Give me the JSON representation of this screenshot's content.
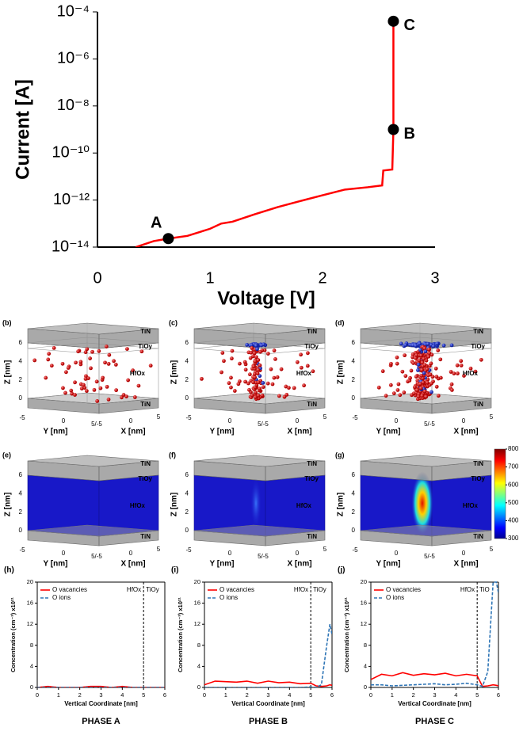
{
  "chart_data": [
    {
      "type": "line",
      "ylog": true,
      "xlabel": "Voltage [V]",
      "ylabel": "Current [A]",
      "color": "#ff0000",
      "x": [
        0.34,
        0.5,
        0.63,
        0.8,
        1.0,
        1.1,
        1.2,
        1.4,
        1.6,
        1.8,
        2.0,
        2.2,
        2.4,
        2.53,
        2.54,
        2.62,
        2.63,
        2.63
      ],
      "values": [
        1e-14,
        1.8e-14,
        2.3e-14,
        3e-14,
        6e-14,
        1e-13,
        1.2e-13,
        2.5e-13,
        5e-13,
        9e-13,
        1.6e-12,
        2.8e-12,
        3.5e-12,
        4.2e-12,
        1.8e-11,
        2e-11,
        1e-09,
        4e-05
      ],
      "xlim": [
        0,
        3
      ],
      "xticks": [
        0,
        1,
        2,
        3
      ],
      "ylim": [
        1e-14,
        0.0001
      ],
      "yticks": [
        {
          "value": 1e-14,
          "label": "10⁻¹⁴"
        },
        {
          "value": 1e-12,
          "label": "10⁻¹²"
        },
        {
          "value": 1e-10,
          "label": "10⁻¹⁰"
        },
        {
          "value": 1e-08,
          "label": "10⁻⁸"
        },
        {
          "value": 1e-06,
          "label": "10⁻⁶"
        },
        {
          "value": 0.0001,
          "label": "10⁻⁴"
        }
      ],
      "points": [
        {
          "label": "A",
          "x": 0.63,
          "y": 2.3e-14
        },
        {
          "label": "B",
          "x": 2.63,
          "y": 1e-09
        },
        {
          "label": "C",
          "x": 2.63,
          "y": 4e-05
        }
      ]
    },
    {
      "type": "line",
      "panel": "(h)",
      "caption": "PHASE A",
      "xlabel": "Vertical Coordinate [nm]",
      "ylabel": "Concentration (cm⁻³) x10²¹",
      "x": [
        0,
        0.5,
        1,
        1.5,
        2,
        2.5,
        3,
        3.5,
        4,
        4.5,
        5,
        5.25,
        5.5,
        5.75,
        5.9,
        6
      ],
      "series": [
        {
          "name": "O vacancies",
          "color": "#ff0000",
          "style": "solid",
          "values": [
            0,
            0.2,
            0,
            0,
            0,
            0.2,
            0.2,
            0,
            0.2,
            0,
            0,
            0,
            0,
            0,
            0,
            0
          ]
        },
        {
          "name": "O ions",
          "color": "#2e75b6",
          "style": "dashed",
          "values": [
            0,
            0,
            0,
            0,
            0,
            0,
            0,
            0,
            0,
            0,
            0,
            0,
            0,
            0,
            0,
            0
          ]
        }
      ],
      "xlim": [
        0,
        6
      ],
      "xticks": [
        0,
        1,
        2,
        3,
        4,
        5,
        6
      ],
      "ylim": [
        0,
        20
      ],
      "yticks": [
        0,
        4,
        8,
        12,
        16,
        20
      ],
      "legend": "upper left",
      "boundary": 5,
      "region_labels": [
        "HfOx",
        "TiOy"
      ]
    },
    {
      "type": "line",
      "panel": "(i)",
      "caption": "PHASE B",
      "xlabel": "Vertical Coordinate [nm]",
      "ylabel": "Concentration (cm⁻³) x10²¹",
      "x": [
        0,
        0.5,
        1,
        1.5,
        2,
        2.5,
        3,
        3.5,
        4,
        4.5,
        5,
        5.25,
        5.5,
        5.75,
        5.9,
        6
      ],
      "series": [
        {
          "name": "O vacancies",
          "color": "#ff0000",
          "style": "solid",
          "values": [
            0.5,
            1.2,
            1.1,
            1.0,
            1.2,
            0.8,
            1.2,
            0.9,
            1.0,
            0.7,
            0.8,
            0.3,
            0.2,
            0.3,
            0.5,
            0.4
          ]
        },
        {
          "name": "O ions",
          "color": "#2e75b6",
          "style": "dashed",
          "values": [
            0,
            0,
            0,
            0,
            0,
            0,
            0,
            0,
            0,
            0,
            0.1,
            0,
            0.5,
            8,
            12,
            10
          ]
        }
      ],
      "xlim": [
        0,
        6
      ],
      "xticks": [
        0,
        1,
        2,
        3,
        4,
        5,
        6
      ],
      "ylim": [
        0,
        20
      ],
      "yticks": [
        0,
        4,
        8,
        12,
        16,
        20
      ],
      "legend": "upper left",
      "boundary": 5,
      "region_labels": [
        "HfOx",
        "TiOy"
      ]
    },
    {
      "type": "line",
      "panel": "(j)",
      "caption": "PHASE C",
      "xlabel": "Vertical Coordinate [nm]",
      "ylabel": "Concentration (cm⁻³) x10²¹",
      "x": [
        0,
        0.5,
        1,
        1.5,
        2,
        2.5,
        3,
        3.5,
        4,
        4.5,
        5,
        5.25,
        5.5,
        5.75,
        5.9,
        6
      ],
      "series": [
        {
          "name": "O vacancies",
          "color": "#ff0000",
          "style": "solid",
          "values": [
            1.5,
            2.5,
            2.2,
            2.8,
            2.3,
            2.6,
            2.4,
            2.7,
            2.2,
            2.5,
            2.2,
            0.2,
            0.3,
            0.5,
            0.4,
            0.3
          ]
        },
        {
          "name": "O ions",
          "color": "#2e75b6",
          "style": "dashed",
          "values": [
            0.5,
            0.5,
            0.3,
            0.4,
            0.5,
            0.6,
            0.7,
            0.5,
            0.6,
            0.8,
            0.5,
            0.2,
            3,
            20,
            20,
            18
          ]
        }
      ],
      "xlim": [
        0,
        6
      ],
      "xticks": [
        0,
        1,
        2,
        3,
        4,
        5,
        6
      ],
      "ylim": [
        0,
        20
      ],
      "yticks": [
        0,
        4,
        8,
        12,
        16,
        20
      ],
      "legend": "upper left",
      "boundary": 5,
      "region_labels": [
        "HfOx",
        "TiO"
      ]
    }
  ],
  "structure_axes": {
    "z_label": "Z [nm]",
    "y_label": "Y [nm]",
    "x_label": "X [nm]",
    "z_ticks": [
      0,
      2,
      4,
      6
    ],
    "y_ticks": [
      -5,
      0,
      "5/-5"
    ],
    "x_ticks": [
      0,
      5
    ]
  },
  "structure_panels": [
    {
      "label": "(b)",
      "layers": [
        "TiN",
        "TiOy",
        "HfOx",
        "TiN"
      ]
    },
    {
      "label": "(c)",
      "layers": [
        "TiN",
        "TiOy",
        "HfOx",
        "TiN"
      ]
    },
    {
      "label": "(d)",
      "layers": [
        "TiN",
        "TiOy",
        "HfOx",
        "TiN"
      ]
    }
  ],
  "heatmap_panels": [
    {
      "label": "(e)",
      "layers": [
        "TiN",
        "TiOy",
        "HfOx",
        "TiN"
      ]
    },
    {
      "label": "(f)",
      "layers": [
        "TiN",
        "TiOy",
        "HfOx",
        "TiN"
      ]
    },
    {
      "label": "(g)",
      "layers": [
        "TiN",
        "TiOy",
        "HfOx",
        "TiN"
      ]
    }
  ],
  "colorbar": {
    "lim": [
      300,
      800
    ],
    "ticks": [
      300,
      400,
      500,
      600,
      700,
      800
    ]
  }
}
